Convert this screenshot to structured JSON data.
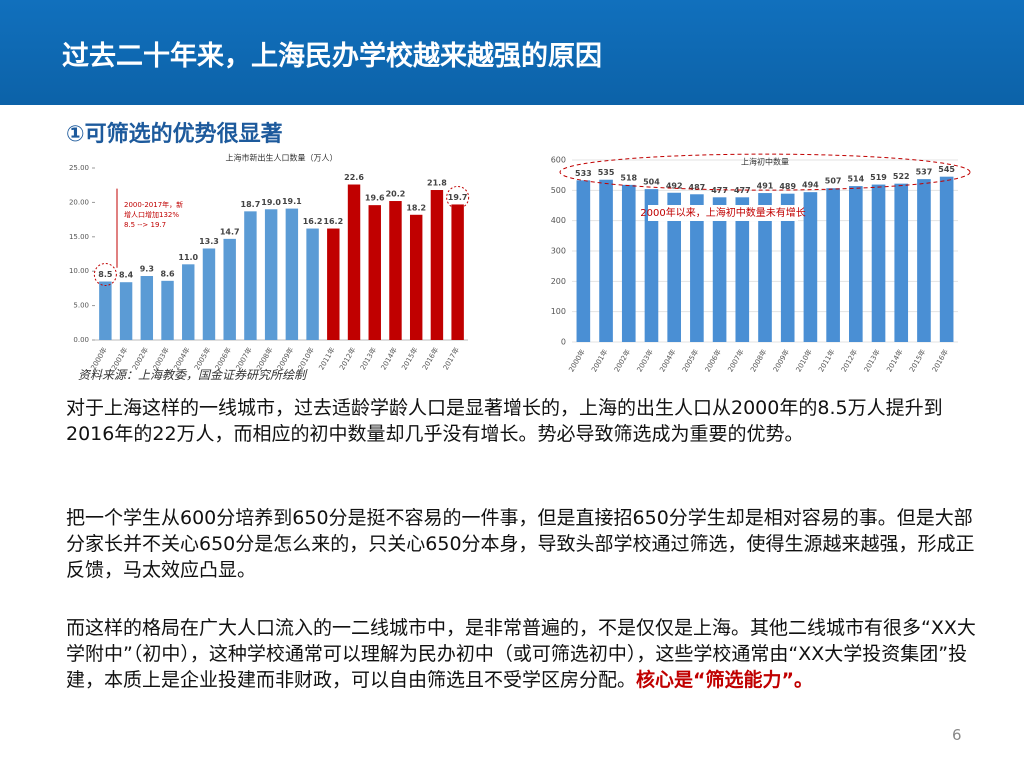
{
  "header": {
    "title": "过去二十年来，上海民办学校越来越强的原因"
  },
  "subtitle": "①可筛选的优势很显著",
  "chart_data": [
    {
      "type": "bar",
      "title": "上海市新出生人口数量（万人）",
      "categories": [
        "2000年",
        "2001年",
        "2002年",
        "2003年",
        "2004年",
        "2005年",
        "2006年",
        "2007年",
        "2008年",
        "2009年",
        "2010年",
        "2011年",
        "2012年",
        "2013年",
        "2014年",
        "2015年",
        "2016年",
        "2017年"
      ],
      "values": [
        8.5,
        8.4,
        9.3,
        8.6,
        11,
        13.3,
        14.7,
        18.7,
        19,
        19.1,
        16.2,
        16.2,
        22.6,
        19.6,
        20.2,
        18.2,
        21.8,
        19.7
      ],
      "value_labels": [
        "8.5",
        "8.4",
        "9.3",
        "8.6",
        "11.0",
        "13.3",
        "14.7",
        "18.7",
        "19.0",
        "19.1",
        "16.2",
        "16.2",
        "22.6",
        "19.6",
        "20.2",
        "18.2",
        "21.8",
        "19.7"
      ],
      "colors": [
        "#5b9bd5",
        "#5b9bd5",
        "#5b9bd5",
        "#5b9bd5",
        "#5b9bd5",
        "#5b9bd5",
        "#5b9bd5",
        "#5b9bd5",
        "#5b9bd5",
        "#5b9bd5",
        "#5b9bd5",
        "#c00000",
        "#c00000",
        "#c00000",
        "#c00000",
        "#c00000",
        "#c00000",
        "#c00000"
      ],
      "ylim": [
        0,
        25
      ],
      "yticks": [
        {
          "value": 0,
          "label": "0.00"
        },
        {
          "value": 5,
          "label": "5.00"
        },
        {
          "value": 10,
          "label": "10.00"
        },
        {
          "value": 15,
          "label": "15.00"
        },
        {
          "value": 20,
          "label": "20.00"
        },
        {
          "value": 25,
          "label": "25.00"
        }
      ],
      "annotation": [
        "2000-2017年，新",
        "增人口增加132%",
        "8.5 --> 19.7"
      ],
      "grid": false
    },
    {
      "type": "bar",
      "title": "上海初中数量",
      "categories": [
        "2000年",
        "2001年",
        "2002年",
        "2003年",
        "2004年",
        "2005年",
        "2006年",
        "2007年",
        "2008年",
        "2009年",
        "2010年",
        "2011年",
        "2012年",
        "2013年",
        "2014年",
        "2015年",
        "2016年"
      ],
      "values": [
        533,
        535,
        518,
        504,
        492,
        487,
        477,
        477,
        491,
        489,
        494,
        507,
        514,
        519,
        522,
        537,
        545
      ],
      "color": "#4a8fd4",
      "ylim": [
        0,
        600
      ],
      "yticks": [
        0,
        100,
        200,
        300,
        400,
        500,
        600
      ],
      "annotation": [
        "2000年以来，上海初中数量未有增长"
      ],
      "grid": true
    }
  ],
  "source": "资料来源：上海教委，国金证券研究所绘制",
  "paragraphs": [
    "对于上海这样的一线城市，过去适龄学龄人口是显著增长的，上海的出生人口从2000年的8.5万人提升到2016年的22万人，而相应的初中数量却几乎没有增长。势必导致筛选成为重要的优势。",
    "把一个学生从600分培养到650分是挺不容易的一件事，但是直接招650分学生却是相对容易的事。但是大部分家长并不关心650分是怎么来的，只关心650分本身，导致头部学校通过筛选，使得生源越来越强，形成正反馈，马太效应凸显。"
  ],
  "last_paragraph": {
    "text": "而这样的格局在广大人口流入的一二线城市中，是非常普遍的，不是仅仅是上海。其他二线城市有很多“XX大学附中”（初中），这种学校通常可以理解为民办初中（或可筛选初中），这些学校通常由“XX大学投资集团”投建，本质上是企业投建而非财政，可以自由筛选且不受学区房分配。",
    "emphasis": "核心是“筛选能力”。"
  },
  "page_number": "6"
}
